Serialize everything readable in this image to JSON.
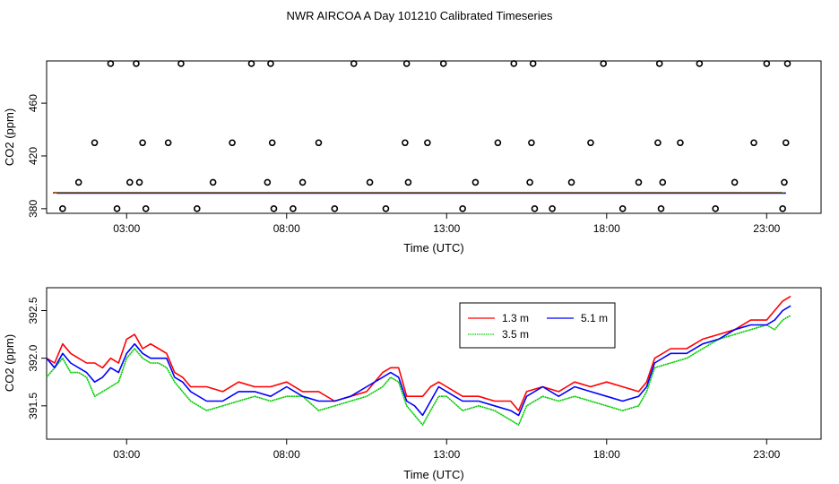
{
  "page": {
    "title": "NWR AIRCOA A  Day 101210  Calibrated Timeseries"
  },
  "chart_data": [
    {
      "type": "scatter",
      "title": "",
      "xlabel": "Time (UTC)",
      "ylabel": "CO2 (ppm)",
      "xlim": [
        0.5,
        24.7
      ],
      "ylim": [
        376.5,
        492
      ],
      "x_tick_values": [
        3,
        8,
        13,
        18,
        23
      ],
      "x_tick_labels": [
        "03:00",
        "08:00",
        "13:00",
        "18:00",
        "23:00"
      ],
      "y_tick_values": [
        380,
        420,
        460
      ],
      "y_tick_labels": [
        "380",
        "420",
        "460"
      ],
      "flagged_points": {
        "x": [
          1.0,
          1.5,
          2.0,
          2.5,
          2.7,
          3.1,
          3.3,
          3.4,
          3.5,
          3.6,
          4.3,
          4.7,
          5.2,
          5.7,
          6.3,
          6.9,
          7.4,
          7.5,
          7.55,
          7.6,
          8.2,
          8.5,
          9.0,
          9.5,
          10.1,
          10.6,
          11.1,
          11.7,
          11.75,
          11.8,
          12.4,
          12.9,
          13.5,
          13.9,
          14.6,
          15.1,
          15.6,
          15.65,
          15.7,
          15.75,
          16.3,
          16.9,
          17.5,
          17.9,
          18.5,
          19.0,
          19.6,
          19.65,
          19.7,
          19.75,
          20.3,
          20.9,
          21.4,
          22.0,
          22.6,
          23.0,
          23.5,
          23.55,
          23.6,
          23.65
        ],
        "y": [
          380,
          400,
          430,
          490,
          380,
          400,
          490,
          400,
          430,
          380,
          430,
          490,
          380,
          400,
          430,
          490,
          400,
          490,
          430,
          380,
          380,
          400,
          430,
          380,
          490,
          400,
          380,
          430,
          490,
          400,
          430,
          490,
          380,
          400,
          430,
          490,
          400,
          430,
          490,
          380,
          380,
          400,
          430,
          490,
          380,
          400,
          430,
          490,
          380,
          400,
          430,
          490,
          380,
          400,
          430,
          490,
          380,
          400,
          430,
          490
        ]
      },
      "baseline_value": 392,
      "series_colors": [
        "#ff0000",
        "#00cc00",
        "#0000ff"
      ]
    },
    {
      "type": "line",
      "title": "",
      "xlabel": "Time (UTC)",
      "ylabel": "CO2 (ppm)",
      "xlim": [
        0.5,
        24.7
      ],
      "ylim": [
        391.15,
        392.74
      ],
      "x_tick_values": [
        3,
        8,
        13,
        18,
        23
      ],
      "x_tick_labels": [
        "03:00",
        "08:00",
        "13:00",
        "18:00",
        "23:00"
      ],
      "y_tick_values": [
        391.5,
        392.0,
        392.5
      ],
      "y_tick_labels": [
        "391.5",
        "392.0",
        "392.5"
      ],
      "legend": {
        "position": "top-center",
        "entries": [
          "1.3 m",
          "3.5 m",
          "5.1 m"
        ]
      },
      "x": [
        0.5,
        0.75,
        1.0,
        1.25,
        1.5,
        1.75,
        2.0,
        2.25,
        2.5,
        2.75,
        3.0,
        3.25,
        3.5,
        3.75,
        4.0,
        4.25,
        4.5,
        4.75,
        5.0,
        5.5,
        6.0,
        6.5,
        7.0,
        7.5,
        8.0,
        8.5,
        9.0,
        9.5,
        10.0,
        10.5,
        11.0,
        11.25,
        11.5,
        11.75,
        12.0,
        12.25,
        12.5,
        12.75,
        13.0,
        13.5,
        14.0,
        14.5,
        15.0,
        15.25,
        15.5,
        16.0,
        16.5,
        17.0,
        17.5,
        18.0,
        18.5,
        19.0,
        19.25,
        19.5,
        20.0,
        20.5,
        21.0,
        21.5,
        22.0,
        22.5,
        23.0,
        23.25,
        23.5,
        23.75
      ],
      "series": [
        {
          "name": "1.3 m",
          "color": "#ff0000",
          "values": [
            392.0,
            391.95,
            392.15,
            392.05,
            392.0,
            391.95,
            391.95,
            391.9,
            392.0,
            391.95,
            392.2,
            392.25,
            392.1,
            392.15,
            392.1,
            392.05,
            391.85,
            391.8,
            391.7,
            391.7,
            391.65,
            391.75,
            391.7,
            391.7,
            391.75,
            391.65,
            391.65,
            391.55,
            391.6,
            391.65,
            391.85,
            391.9,
            391.9,
            391.6,
            391.6,
            391.6,
            391.7,
            391.75,
            391.7,
            391.6,
            391.6,
            391.55,
            391.55,
            391.45,
            391.65,
            391.7,
            391.65,
            391.75,
            391.7,
            391.75,
            391.7,
            391.65,
            391.75,
            392.0,
            392.1,
            392.1,
            392.2,
            392.25,
            392.3,
            392.4,
            392.4,
            392.5,
            392.6,
            392.65
          ]
        },
        {
          "name": "3.5 m",
          "color": "#00cc00",
          "values": [
            391.8,
            391.9,
            392.0,
            391.85,
            391.85,
            391.8,
            391.6,
            391.65,
            391.7,
            391.75,
            392.0,
            392.1,
            392.0,
            391.95,
            391.95,
            391.9,
            391.75,
            391.65,
            391.55,
            391.45,
            391.5,
            391.55,
            391.6,
            391.55,
            391.6,
            391.6,
            391.45,
            391.5,
            391.55,
            391.6,
            391.7,
            391.8,
            391.75,
            391.5,
            391.4,
            391.3,
            391.45,
            391.6,
            391.6,
            391.45,
            391.5,
            391.45,
            391.35,
            391.3,
            391.5,
            391.6,
            391.55,
            391.6,
            391.55,
            391.5,
            391.45,
            391.5,
            391.65,
            391.9,
            391.95,
            392.0,
            392.1,
            392.2,
            392.25,
            392.3,
            392.35,
            392.3,
            392.4,
            392.45
          ]
        },
        {
          "name": "5.1 m",
          "color": "#0000ff",
          "values": [
            392.0,
            391.9,
            392.05,
            391.95,
            391.9,
            391.85,
            391.75,
            391.8,
            391.9,
            391.85,
            392.05,
            392.15,
            392.05,
            392.0,
            392.0,
            392.0,
            391.8,
            391.75,
            391.65,
            391.55,
            391.55,
            391.65,
            391.65,
            391.6,
            391.7,
            391.6,
            391.55,
            391.55,
            391.6,
            391.7,
            391.8,
            391.85,
            391.8,
            391.55,
            391.5,
            391.4,
            391.55,
            391.7,
            391.65,
            391.55,
            391.55,
            391.5,
            391.45,
            391.4,
            391.6,
            391.7,
            391.6,
            391.7,
            391.65,
            391.6,
            391.55,
            391.6,
            391.7,
            391.95,
            392.05,
            392.05,
            392.15,
            392.2,
            392.3,
            392.35,
            392.35,
            392.4,
            392.5,
            392.55
          ]
        }
      ]
    }
  ]
}
